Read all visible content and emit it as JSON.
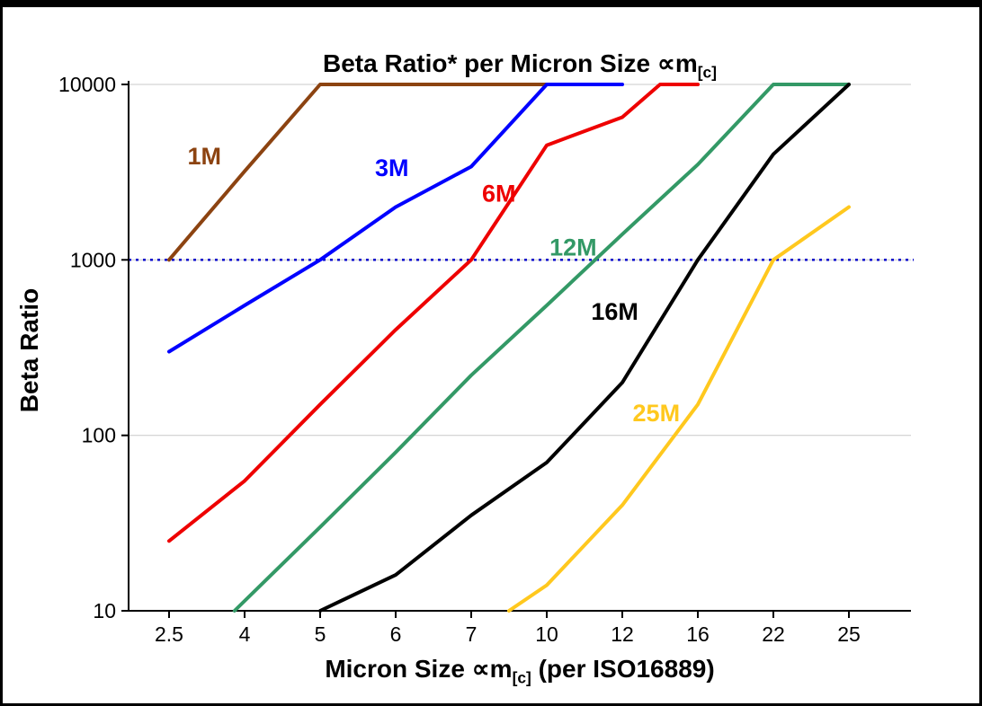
{
  "chart_data": {
    "type": "line",
    "title_main": "Beta Ratio* per Micron Size ∝m",
    "title_sub": "[c]",
    "ylabel": "Beta Ratio",
    "xlabel_main": "Micron Size ∝m",
    "xlabel_sub": "[c]",
    "xlabel_post": " (per ISO16889)",
    "x_axis_type": "categorical",
    "categories": [
      2.5,
      4,
      5,
      6,
      7,
      10,
      12,
      16,
      22,
      25
    ],
    "y_scale": "log",
    "ylim": [
      10,
      10000
    ],
    "y_ticks": [
      10,
      100,
      1000,
      10000
    ],
    "grid_on": true,
    "grid_color": "#c9c9c9",
    "reference_line": {
      "y": 1000,
      "color": "#0000cc",
      "style": "dotted"
    },
    "series": [
      {
        "name": "1M",
        "color": "#8c4311",
        "label_pos": [
          3.2,
          3500
        ],
        "points": [
          [
            2.5,
            1000
          ],
          [
            4,
            3200
          ],
          [
            5,
            10000
          ],
          [
            10,
            10000
          ]
        ]
      },
      {
        "name": "3M",
        "color": "#0000ff",
        "label_pos": [
          5.95,
          3000
        ],
        "points": [
          [
            2.5,
            300
          ],
          [
            4,
            550
          ],
          [
            5,
            1000
          ],
          [
            6,
            2000
          ],
          [
            7,
            3400
          ],
          [
            10,
            10000
          ],
          [
            12,
            10000
          ]
        ]
      },
      {
        "name": "6M",
        "color": "#ee0000",
        "label_pos": [
          8.1,
          2150
        ],
        "points": [
          [
            2.5,
            25
          ],
          [
            4,
            55
          ],
          [
            5,
            150
          ],
          [
            6,
            400
          ],
          [
            7,
            1000
          ],
          [
            10,
            4500
          ],
          [
            12,
            6500
          ],
          [
            14,
            10000
          ],
          [
            16,
            10000
          ]
        ]
      },
      {
        "name": "12M",
        "color": "#339966",
        "label_pos": [
          10.7,
          1060
        ],
        "points": [
          [
            3.8,
            10
          ],
          [
            5,
            30
          ],
          [
            6,
            80
          ],
          [
            7,
            220
          ],
          [
            10,
            550
          ],
          [
            12,
            1400
          ],
          [
            16,
            3500
          ],
          [
            22,
            10000
          ],
          [
            25,
            10000
          ]
        ]
      },
      {
        "name": "16M",
        "color": "#000000",
        "label_pos": [
          11.8,
          455
        ],
        "points": [
          [
            5,
            10
          ],
          [
            6,
            16
          ],
          [
            7,
            35
          ],
          [
            10,
            70
          ],
          [
            12,
            200
          ],
          [
            16,
            1000
          ],
          [
            22,
            4000
          ],
          [
            25,
            10000
          ]
        ]
      },
      {
        "name": "25M",
        "color": "#ffc81e",
        "label_pos": [
          13.8,
          120
        ],
        "points": [
          [
            8.5,
            10
          ],
          [
            10,
            14
          ],
          [
            12,
            40
          ],
          [
            16,
            150
          ],
          [
            22,
            1000
          ],
          [
            25,
            2000
          ]
        ]
      }
    ]
  }
}
